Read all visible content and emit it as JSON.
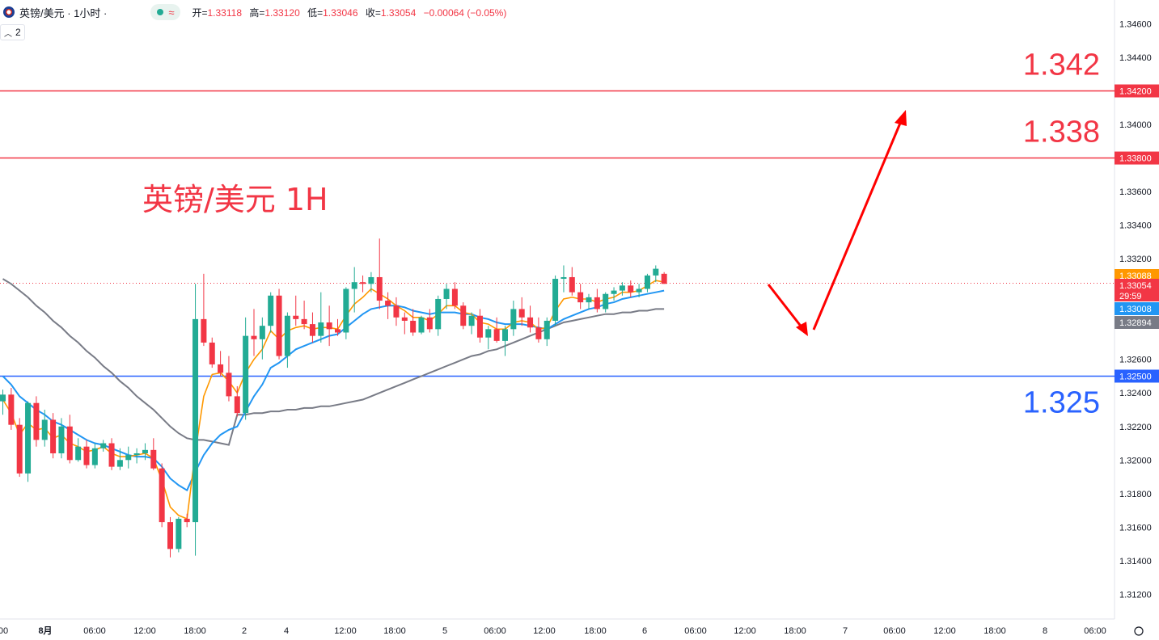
{
  "header": {
    "symbol": "英镑/美元 · 1小时 ·",
    "open_label": "开=",
    "open": "1.33118",
    "high_label": "高=",
    "high": "1.33120",
    "low_label": "低=",
    "low": "1.33046",
    "close_label": "收=",
    "close": "1.33054",
    "change": "−0.00064 (−0.05%)",
    "legend_count": "2",
    "icons": [
      "flag-icon",
      "status-dot-icon",
      "wave-icon",
      "chevron-up-icon"
    ]
  },
  "colors": {
    "up": "#22ab94",
    "down": "#f23645",
    "ma_fast": "#ff9800",
    "ma_mid": "#2196f3",
    "ma_slow": "#787b86",
    "resistance": "#f23645",
    "support": "#2962ff",
    "arrow": "#ff0000"
  },
  "chart_data": {
    "type": "candlestick",
    "title": "英镑/美元 1H",
    "ylim": [
      1.3112,
      1.3466
    ],
    "y_ticks": [
      "1.34600",
      "1.34400",
      "1.34200",
      "1.34000",
      "1.33800",
      "1.33600",
      "1.33400",
      "1.33200",
      "1.33000",
      "1.32800",
      "1.32600",
      "1.32400",
      "1.32200",
      "1.32000",
      "1.31800",
      "1.31600",
      "1.31400",
      "1.31200"
    ],
    "x_ticks": [
      "00",
      "8月",
      "06:00",
      "12:00",
      "18:00",
      "2",
      "4",
      "12:00",
      "18:00",
      "5",
      "06:00",
      "12:00",
      "18:00",
      "6",
      "06:00",
      "12:00",
      "18:00",
      "7",
      "06:00",
      "12:00",
      "18:00",
      "8",
      "06:00"
    ],
    "horizontal_levels": [
      {
        "value": 1.342,
        "label": "1.342",
        "axis_label": "1.34200",
        "color": "#f23645"
      },
      {
        "value": 1.338,
        "label": "1.338",
        "axis_label": "1.33800",
        "color": "#f23645"
      },
      {
        "value": 1.325,
        "label": "1.325",
        "axis_label": "1.32500",
        "color": "#2962ff"
      }
    ],
    "price_tags": [
      {
        "value": 1.33088,
        "label": "1.33088",
        "color": "#ff9800"
      },
      {
        "value": 1.33054,
        "label": "1.33054",
        "sublabel": "29:59",
        "color": "#f23645"
      },
      {
        "value": 1.33008,
        "label": "1.33008",
        "color": "#2196f3"
      },
      {
        "value": 1.32894,
        "label": "1.32894",
        "color": "#787b86"
      }
    ],
    "candles": [
      [
        1.3235,
        1.3242,
        1.3227,
        1.3239
      ],
      [
        1.3239,
        1.3243,
        1.3218,
        1.3221
      ],
      [
        1.3221,
        1.3225,
        1.319,
        1.3192
      ],
      [
        1.3192,
        1.3235,
        1.3187,
        1.3234
      ],
      [
        1.3234,
        1.3238,
        1.3208,
        1.3212
      ],
      [
        1.3212,
        1.323,
        1.3208,
        1.3224
      ],
      [
        1.3224,
        1.3228,
        1.3201,
        1.3204
      ],
      [
        1.3204,
        1.3225,
        1.3201,
        1.322
      ],
      [
        1.322,
        1.3227,
        1.3198,
        1.32
      ],
      [
        1.32,
        1.3213,
        1.3199,
        1.3208
      ],
      [
        1.3208,
        1.3212,
        1.3195,
        1.3197
      ],
      [
        1.3197,
        1.321,
        1.3195,
        1.3207
      ],
      [
        1.3207,
        1.3212,
        1.3205,
        1.321
      ],
      [
        1.321,
        1.3213,
        1.3194,
        1.3196
      ],
      [
        1.3196,
        1.3207,
        1.3194,
        1.32
      ],
      [
        1.32,
        1.3208,
        1.3195,
        1.3203
      ],
      [
        1.3203,
        1.3207,
        1.3198,
        1.3204
      ],
      [
        1.3204,
        1.321,
        1.32,
        1.3206
      ],
      [
        1.3206,
        1.3213,
        1.3194,
        1.3195
      ],
      [
        1.3195,
        1.3198,
        1.316,
        1.3163
      ],
      [
        1.3163,
        1.3166,
        1.3142,
        1.3147
      ],
      [
        1.3147,
        1.3166,
        1.3145,
        1.3165
      ],
      [
        1.3165,
        1.3168,
        1.316,
        1.3163
      ],
      [
        1.3163,
        1.3305,
        1.3143,
        1.3284
      ],
      [
        1.3284,
        1.3311,
        1.3268,
        1.327
      ],
      [
        1.327,
        1.3273,
        1.3255,
        1.3257
      ],
      [
        1.3257,
        1.3265,
        1.325,
        1.3252
      ],
      [
        1.3252,
        1.3262,
        1.3235,
        1.3238
      ],
      [
        1.3238,
        1.3244,
        1.3226,
        1.3228
      ],
      [
        1.3228,
        1.3285,
        1.3224,
        1.3274
      ],
      [
        1.3274,
        1.329,
        1.3262,
        1.3272
      ],
      [
        1.3272,
        1.3285,
        1.326,
        1.328
      ],
      [
        1.328,
        1.33,
        1.3276,
        1.3298
      ],
      [
        1.3298,
        1.3302,
        1.326,
        1.3262
      ],
      [
        1.3262,
        1.3288,
        1.3255,
        1.3286
      ],
      [
        1.3286,
        1.3298,
        1.328,
        1.3284
      ],
      [
        1.3284,
        1.3295,
        1.3278,
        1.3281
      ],
      [
        1.3281,
        1.3288,
        1.327,
        1.3274
      ],
      [
        1.3274,
        1.33,
        1.327,
        1.3282
      ],
      [
        1.3282,
        1.3292,
        1.3268,
        1.3278
      ],
      [
        1.3278,
        1.3284,
        1.3274,
        1.3276
      ],
      [
        1.3276,
        1.3303,
        1.3272,
        1.3302
      ],
      [
        1.3302,
        1.3315,
        1.3288,
        1.3306
      ],
      [
        1.3306,
        1.331,
        1.33,
        1.3305
      ],
      [
        1.3305,
        1.3312,
        1.33,
        1.3309
      ],
      [
        1.3309,
        1.3332,
        1.329,
        1.3295
      ],
      [
        1.3295,
        1.33,
        1.3284,
        1.3292
      ],
      [
        1.3292,
        1.3297,
        1.328,
        1.3285
      ],
      [
        1.3285,
        1.3288,
        1.3275,
        1.3283
      ],
      [
        1.3283,
        1.329,
        1.3274,
        1.3276
      ],
      [
        1.3276,
        1.3286,
        1.3275,
        1.3285
      ],
      [
        1.3285,
        1.329,
        1.3276,
        1.3278
      ],
      [
        1.3278,
        1.3298,
        1.3274,
        1.3296
      ],
      [
        1.3296,
        1.3305,
        1.329,
        1.3302
      ],
      [
        1.3302,
        1.3306,
        1.329,
        1.3292
      ],
      [
        1.3292,
        1.3294,
        1.3278,
        1.328
      ],
      [
        1.328,
        1.3288,
        1.3275,
        1.3286
      ],
      [
        1.3286,
        1.329,
        1.327,
        1.3273
      ],
      [
        1.3273,
        1.328,
        1.3266,
        1.3278
      ],
      [
        1.3278,
        1.3285,
        1.327,
        1.3271
      ],
      [
        1.3271,
        1.328,
        1.3262,
        1.3278
      ],
      [
        1.3278,
        1.3295,
        1.3274,
        1.329
      ],
      [
        1.329,
        1.3297,
        1.328,
        1.3285
      ],
      [
        1.3285,
        1.3292,
        1.3276,
        1.3279
      ],
      [
        1.3279,
        1.3285,
        1.327,
        1.3272
      ],
      [
        1.3272,
        1.3285,
        1.3268,
        1.3283
      ],
      [
        1.3283,
        1.331,
        1.328,
        1.3308
      ],
      [
        1.3308,
        1.3316,
        1.33,
        1.3309
      ],
      [
        1.3309,
        1.3315,
        1.3298,
        1.33
      ],
      [
        1.33,
        1.3305,
        1.329,
        1.3294
      ],
      [
        1.3294,
        1.3299,
        1.329,
        1.3297
      ],
      [
        1.3297,
        1.3302,
        1.3288,
        1.329
      ],
      [
        1.329,
        1.33,
        1.3288,
        1.3299
      ],
      [
        1.3299,
        1.3303,
        1.3295,
        1.3301
      ],
      [
        1.3301,
        1.3306,
        1.3298,
        1.3304
      ],
      [
        1.3304,
        1.3307,
        1.3297,
        1.33
      ],
      [
        1.33,
        1.3305,
        1.3297,
        1.3302
      ],
      [
        1.3302,
        1.3311,
        1.33,
        1.331
      ],
      [
        1.331,
        1.3316,
        1.3306,
        1.3314
      ],
      [
        1.3311,
        1.3312,
        1.3305,
        1.3305
      ]
    ],
    "ma_fast": [
      1.3236,
      1.3228,
      1.3215,
      1.3222,
      1.3218,
      1.3219,
      1.3213,
      1.3215,
      1.321,
      1.3208,
      1.3205,
      1.3206,
      1.3208,
      1.3204,
      1.3202,
      1.3202,
      1.3203,
      1.3204,
      1.3201,
      1.3188,
      1.3172,
      1.3167,
      1.3165,
      1.3205,
      1.3238,
      1.3251,
      1.3252,
      1.3247,
      1.324,
      1.3252,
      1.326,
      1.3266,
      1.3277,
      1.3272,
      1.3277,
      1.3279,
      1.328,
      1.3278,
      1.3279,
      1.3279,
      1.3278,
      1.3286,
      1.3293,
      1.3297,
      1.3302,
      1.3299,
      1.3296,
      1.3292,
      1.3289,
      1.3285,
      1.3285,
      1.3283,
      1.3287,
      1.3292,
      1.3292,
      1.3288,
      1.3287,
      1.3282,
      1.3281,
      1.3278,
      1.3278,
      1.3282,
      1.3283,
      1.3282,
      1.3278,
      1.3279,
      1.3289,
      1.3296,
      1.3297,
      1.3296,
      1.3296,
      1.3294,
      1.3296,
      1.3297,
      1.33,
      1.33,
      1.3301,
      1.3304,
      1.3307,
      1.3306
    ],
    "ma_mid": [
      1.325,
      1.3245,
      1.3238,
      1.3234,
      1.323,
      1.3227,
      1.3223,
      1.3221,
      1.3218,
      1.3215,
      1.3212,
      1.321,
      1.3209,
      1.3207,
      1.3205,
      1.3203,
      1.3202,
      1.3202,
      1.3201,
      1.3196,
      1.3189,
      1.3185,
      1.3182,
      1.3193,
      1.3203,
      1.321,
      1.3215,
      1.3218,
      1.322,
      1.3229,
      1.3238,
      1.3245,
      1.3255,
      1.3258,
      1.3262,
      1.3266,
      1.3268,
      1.327,
      1.3272,
      1.3274,
      1.3275,
      1.3279,
      1.3283,
      1.3287,
      1.329,
      1.3291,
      1.3292,
      1.3292,
      1.3291,
      1.3289,
      1.3288,
      1.3287,
      1.3288,
      1.3288,
      1.3288,
      1.3287,
      1.3287,
      1.3285,
      1.3284,
      1.3282,
      1.3281,
      1.3281,
      1.3281,
      1.328,
      1.3279,
      1.3278,
      1.3281,
      1.3284,
      1.3286,
      1.3288,
      1.329,
      1.3291,
      1.3293,
      1.3294,
      1.3296,
      1.3297,
      1.3298,
      1.3299,
      1.33,
      1.3301
    ],
    "ma_slow": [
      1.3308,
      1.3305,
      1.3301,
      1.3297,
      1.3292,
      1.3288,
      1.3283,
      1.3279,
      1.3274,
      1.327,
      1.3265,
      1.3261,
      1.3256,
      1.3252,
      1.3247,
      1.3243,
      1.3238,
      1.3234,
      1.323,
      1.3225,
      1.322,
      1.3216,
      1.3213,
      1.3212,
      1.3212,
      1.3211,
      1.321,
      1.3209,
      1.3227,
      1.3227,
      1.3228,
      1.3228,
      1.3229,
      1.3229,
      1.323,
      1.323,
      1.3231,
      1.3231,
      1.3232,
      1.3232,
      1.3233,
      1.3234,
      1.3235,
      1.3236,
      1.3238,
      1.324,
      1.3242,
      1.3244,
      1.3246,
      1.3248,
      1.325,
      1.3252,
      1.3254,
      1.3256,
      1.3258,
      1.326,
      1.3262,
      1.3263,
      1.3265,
      1.3266,
      1.3268,
      1.327,
      1.3272,
      1.3274,
      1.3276,
      1.3278,
      1.328,
      1.3282,
      1.3283,
      1.3284,
      1.3285,
      1.3286,
      1.3287,
      1.3287,
      1.3288,
      1.3288,
      1.3289,
      1.3289,
      1.329,
      1.329
    ]
  }
}
